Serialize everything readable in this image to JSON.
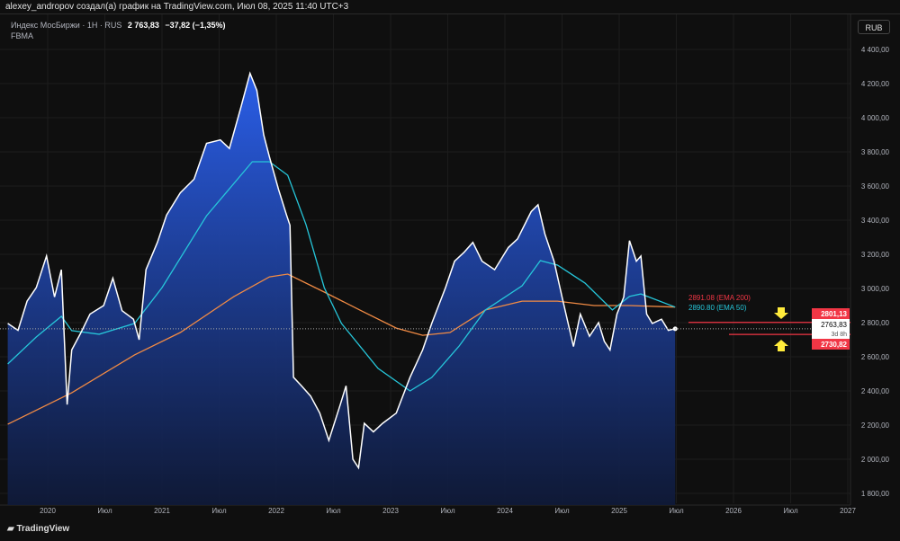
{
  "header": {
    "title": "alexey_andropov создал(а) график на TradingView.com, Июл 08, 2025 11:40 UTC+3"
  },
  "legend": {
    "symbol": "Индекс МосБиржи · 1H · RUS",
    "price": "2 763,83",
    "change": "−37,82 (−1,35%)",
    "indicator": "FBMA"
  },
  "currency_button": "RUB",
  "footer": {
    "brand": "TradingView"
  },
  "colors": {
    "price": "#ffffff",
    "ema50": "#26c6da",
    "ema200": "#f28b44",
    "level": "#f23645",
    "arrow": "#ffeb3b",
    "area_top": "#2a5ee8",
    "area_bottom": "#0f1a3a"
  },
  "chart_data": {
    "type": "area",
    "title": "Индекс МосБиржи",
    "ylim": [
      1800,
      4400
    ],
    "yticks": [
      1800,
      2000,
      2200,
      2400,
      2600,
      2800,
      3000,
      3200,
      3400,
      3600,
      3800,
      4000,
      4200,
      4400
    ],
    "ytick_labels": [
      "1 800,00",
      "2 000,00",
      "2 200,00",
      "2 400,00",
      "2 600,00",
      "2 800,00",
      "3 000,00",
      "3 200,00",
      "3 400,00",
      "3 600,00",
      "3 800,00",
      "4 000,00",
      "4 200,00",
      "4 400,00"
    ],
    "xlim": [
      2019.59,
      2027.04
    ],
    "xticks": [
      2020,
      2020.5,
      2021,
      2021.5,
      2022,
      2022.5,
      2023,
      2023.5,
      2024,
      2024.5,
      2025,
      2025.5,
      2026,
      2026.5,
      2027
    ],
    "xtick_labels": [
      "2020",
      "Июл",
      "2021",
      "Июл",
      "2022",
      "Июл",
      "2023",
      "Июл",
      "2024",
      "Июл",
      "2025",
      "Июл",
      "2026",
      "Июл",
      "2027"
    ],
    "series": [
      {
        "name": "Индекс МосБиржи",
        "x": [
          2019.65,
          2019.74,
          2019.82,
          2019.9,
          2019.99,
          2020.06,
          2020.12,
          2020.17,
          2020.21,
          2020.29,
          2020.37,
          2020.49,
          2020.57,
          2020.65,
          2020.75,
          2020.8,
          2020.86,
          2020.96,
          2021.04,
          2021.16,
          2021.28,
          2021.39,
          2021.51,
          2021.59,
          2021.69,
          2021.77,
          2021.83,
          2021.89,
          2021.94,
          2022.02,
          2022.09,
          2022.12,
          2022.15,
          2022.22,
          2022.3,
          2022.38,
          2022.46,
          2022.56,
          2022.61,
          2022.67,
          2022.72,
          2022.77,
          2022.85,
          2022.93,
          2023.05,
          2023.17,
          2023.28,
          2023.36,
          2023.48,
          2023.56,
          2023.64,
          2023.72,
          2023.8,
          2023.91,
          2024.03,
          2024.11,
          2024.23,
          2024.29,
          2024.35,
          2024.43,
          2024.5,
          2024.6,
          2024.66,
          2024.74,
          2024.82,
          2024.87,
          2024.92,
          2024.98,
          2025.04,
          2025.09,
          2025.15,
          2025.19,
          2025.24,
          2025.29,
          2025.37,
          2025.43,
          2025.49
        ],
        "values": [
          2795,
          2755,
          2926,
          3005,
          3190,
          2950,
          3110,
          2320,
          2640,
          2740,
          2850,
          2900,
          3060,
          2870,
          2820,
          2700,
          3110,
          3270,
          3430,
          3560,
          3640,
          3850,
          3870,
          3820,
          4060,
          4260,
          4160,
          3900,
          3770,
          3580,
          3430,
          3370,
          2480,
          2430,
          2370,
          2270,
          2110,
          2320,
          2430,
          2000,
          1950,
          2210,
          2160,
          2210,
          2270,
          2480,
          2640,
          2795,
          3005,
          3160,
          3210,
          3270,
          3160,
          3110,
          3240,
          3290,
          3450,
          3490,
          3320,
          3160,
          2950,
          2660,
          2850,
          2720,
          2800,
          2690,
          2640,
          2850,
          2950,
          3280,
          3160,
          3190,
          2850,
          2795,
          2820,
          2755,
          2764
        ]
      },
      {
        "name": "EMA 50",
        "x": [
          2019.65,
          2019.9,
          2020.12,
          2020.21,
          2020.45,
          2020.76,
          2021.0,
          2021.39,
          2021.79,
          2021.94,
          2022.1,
          2022.26,
          2022.42,
          2022.57,
          2022.89,
          2023.17,
          2023.36,
          2023.6,
          2023.83,
          2024.15,
          2024.31,
          2024.46,
          2024.7,
          2024.94,
          2025.09,
          2025.19,
          2025.49
        ],
        "values": [
          2558,
          2716,
          2837,
          2753,
          2732,
          2795,
          3005,
          3426,
          3742,
          3742,
          3663,
          3374,
          3005,
          2795,
          2532,
          2400,
          2479,
          2663,
          2874,
          3016,
          3163,
          3137,
          3032,
          2874,
          2953,
          2968,
          2890.8
        ]
      },
      {
        "name": "EMA 200",
        "x": [
          2019.65,
          2020.21,
          2020.76,
          2021.16,
          2021.63,
          2021.94,
          2022.1,
          2022.42,
          2022.73,
          2023.05,
          2023.28,
          2023.52,
          2023.83,
          2024.15,
          2024.46,
          2024.78,
          2025.09,
          2025.49
        ],
        "values": [
          2205,
          2389,
          2611,
          2742,
          2953,
          3068,
          3084,
          2979,
          2874,
          2768,
          2726,
          2742,
          2874,
          2926,
          2926,
          2900,
          2900,
          2891.08
        ]
      }
    ],
    "annotations": {
      "ema200_label": "2891.08 (EMA 200)",
      "ema50_label": "2890.80 (EMA 50)",
      "upper_level": 2801.13,
      "upper_label": "2801,13",
      "lower_level": 2730.82,
      "lower_label": "2730,82",
      "last_price_label": "2763,83",
      "countdown": "3d 8h"
    }
  }
}
